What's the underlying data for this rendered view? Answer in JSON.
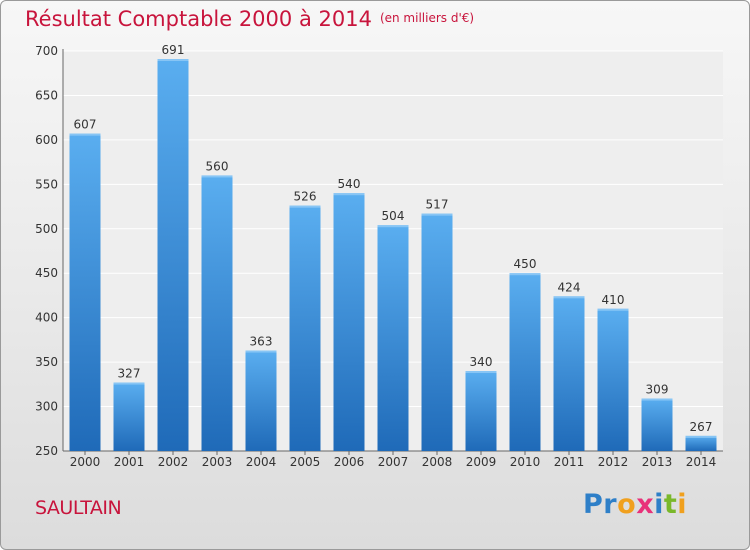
{
  "title": "Résultat Comptable 2000 à 2014",
  "subtitle": "(en milliers d'€)",
  "commune": "SAULTAIN",
  "logo": {
    "text": "Proxiti",
    "letter_colors": [
      "#2e7fc8",
      "#2e7fc8",
      "#f0a01e",
      "#e8327a",
      "#2e7fc8",
      "#7ab82a",
      "#f0a01e"
    ]
  },
  "colors": {
    "title": "#c8143c",
    "bar_top": "#5aaef0",
    "bar_bottom": "#1f6ab8"
  },
  "chart_data": {
    "type": "bar",
    "title": "Résultat Comptable 2000 à 2014",
    "subtitle": "(en milliers d'€)",
    "xlabel": "",
    "ylabel": "",
    "categories": [
      "2000",
      "2001",
      "2002",
      "2003",
      "2004",
      "2005",
      "2006",
      "2007",
      "2008",
      "2009",
      "2010",
      "2011",
      "2012",
      "2013",
      "2014"
    ],
    "values": [
      607,
      327,
      691,
      560,
      363,
      526,
      540,
      504,
      517,
      340,
      450,
      424,
      410,
      309,
      267
    ],
    "ylim": [
      250,
      700
    ],
    "yticks": [
      250,
      300,
      350,
      400,
      450,
      500,
      550,
      600,
      650,
      700
    ],
    "grid": true,
    "data_labels": true
  }
}
